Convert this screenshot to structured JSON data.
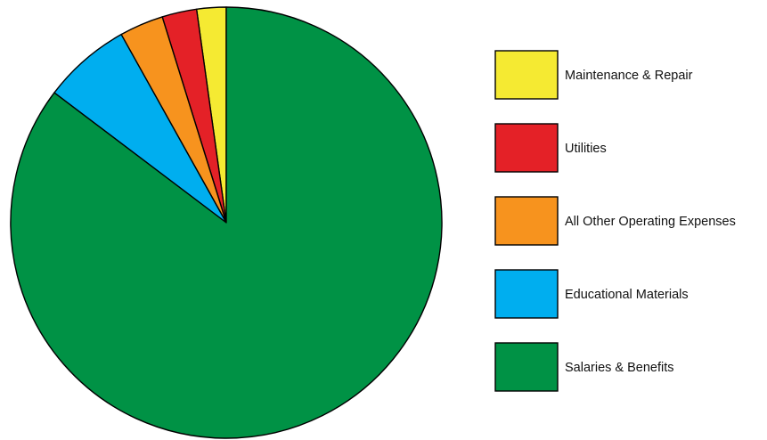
{
  "chart_data": {
    "type": "pie",
    "title": "",
    "legend_position": "right",
    "slices": [
      {
        "label": "Maintenance & Repair",
        "value": 2.2,
        "color": "#F5EA32"
      },
      {
        "label": "Utilities",
        "value": 2.6,
        "color": "#E42127"
      },
      {
        "label": "All Other Operating Expenses",
        "value": 3.3,
        "color": "#F7931E"
      },
      {
        "label": "Educational Materials",
        "value": 6.6,
        "color": "#00AEEF"
      },
      {
        "label": "Salaries & Benefits",
        "value": 85.3,
        "color": "#009245"
      }
    ],
    "start_angle": "12 o'clock",
    "direction": "counterclockwise"
  }
}
